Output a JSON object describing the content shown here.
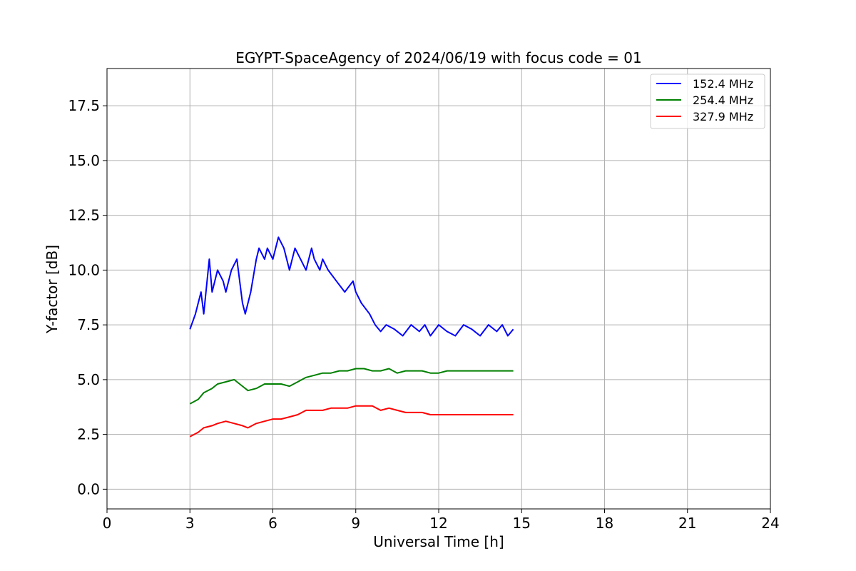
{
  "chart_data": {
    "type": "line",
    "title": "EGYPT-SpaceAgency of 2024/06/19 with focus code = 01",
    "xlabel": "Universal Time [h]",
    "ylabel": "Y-factor [dB]",
    "xlim": [
      0,
      24
    ],
    "ylim": [
      -0.9,
      19.2
    ],
    "xticks": [
      0,
      3,
      6,
      9,
      12,
      15,
      18,
      21,
      24
    ],
    "xtick_labels": [
      "0",
      "3",
      "6",
      "9",
      "12",
      "15",
      "18",
      "21",
      "24"
    ],
    "yticks": [
      0.0,
      2.5,
      5.0,
      7.5,
      10.0,
      12.5,
      15.0,
      17.5
    ],
    "ytick_labels": [
      "0.0",
      "2.5",
      "5.0",
      "7.5",
      "10.0",
      "12.5",
      "15.0",
      "17.5"
    ],
    "grid": true,
    "legend_position": "top-right",
    "series": [
      {
        "name": "152.4 MHz",
        "color": "#0000ff",
        "x": [
          3.0,
          3.2,
          3.4,
          3.5,
          3.7,
          3.8,
          4.0,
          4.2,
          4.3,
          4.5,
          4.7,
          4.9,
          5.0,
          5.2,
          5.4,
          5.5,
          5.7,
          5.8,
          6.0,
          6.2,
          6.4,
          6.6,
          6.8,
          7.0,
          7.2,
          7.4,
          7.5,
          7.7,
          7.8,
          8.0,
          8.3,
          8.6,
          8.9,
          9.0,
          9.2,
          9.5,
          9.7,
          9.9,
          10.1,
          10.4,
          10.7,
          11.0,
          11.3,
          11.5,
          11.7,
          12.0,
          12.3,
          12.6,
          12.9,
          13.2,
          13.5,
          13.8,
          14.1,
          14.3,
          14.5,
          14.7
        ],
        "y": [
          7.3,
          8.0,
          9.0,
          8.0,
          10.5,
          9.0,
          10.0,
          9.5,
          9.0,
          10.0,
          10.5,
          8.5,
          8.0,
          9.0,
          10.5,
          11.0,
          10.5,
          11.0,
          10.5,
          11.5,
          11.0,
          10.0,
          11.0,
          10.5,
          10.0,
          11.0,
          10.5,
          10.0,
          10.5,
          10.0,
          9.5,
          9.0,
          9.5,
          9.0,
          8.5,
          8.0,
          7.5,
          7.2,
          7.5,
          7.3,
          7.0,
          7.5,
          7.2,
          7.5,
          7.0,
          7.5,
          7.2,
          7.0,
          7.5,
          7.3,
          7.0,
          7.5,
          7.2,
          7.5,
          7.0,
          7.3
        ]
      },
      {
        "name": "254.4 MHz",
        "color": "#008000",
        "x": [
          3.0,
          3.3,
          3.5,
          3.8,
          4.0,
          4.3,
          4.6,
          4.9,
          5.1,
          5.4,
          5.7,
          6.0,
          6.3,
          6.6,
          6.9,
          7.2,
          7.5,
          7.8,
          8.1,
          8.4,
          8.7,
          9.0,
          9.3,
          9.6,
          9.9,
          10.2,
          10.5,
          10.8,
          11.1,
          11.4,
          11.7,
          12.0,
          12.3,
          12.6,
          12.9,
          13.2,
          13.5,
          13.8,
          14.1,
          14.4,
          14.7
        ],
        "y": [
          3.9,
          4.1,
          4.4,
          4.6,
          4.8,
          4.9,
          5.0,
          4.7,
          4.5,
          4.6,
          4.8,
          4.8,
          4.8,
          4.7,
          4.9,
          5.1,
          5.2,
          5.3,
          5.3,
          5.4,
          5.4,
          5.5,
          5.5,
          5.4,
          5.4,
          5.5,
          5.3,
          5.4,
          5.4,
          5.4,
          5.3,
          5.3,
          5.4,
          5.4,
          5.4,
          5.4,
          5.4,
          5.4,
          5.4,
          5.4,
          5.4
        ]
      },
      {
        "name": "327.9 MHz",
        "color": "#ff0000",
        "x": [
          3.0,
          3.3,
          3.5,
          3.8,
          4.0,
          4.3,
          4.6,
          4.9,
          5.1,
          5.4,
          5.7,
          6.0,
          6.3,
          6.6,
          6.9,
          7.2,
          7.5,
          7.8,
          8.1,
          8.4,
          8.7,
          9.0,
          9.3,
          9.6,
          9.9,
          10.2,
          10.5,
          10.8,
          11.1,
          11.4,
          11.7,
          12.0,
          12.3,
          12.6,
          12.9,
          13.2,
          13.5,
          13.8,
          14.1,
          14.4,
          14.7
        ],
        "y": [
          2.4,
          2.6,
          2.8,
          2.9,
          3.0,
          3.1,
          3.0,
          2.9,
          2.8,
          3.0,
          3.1,
          3.2,
          3.2,
          3.3,
          3.4,
          3.6,
          3.6,
          3.6,
          3.7,
          3.7,
          3.7,
          3.8,
          3.8,
          3.8,
          3.6,
          3.7,
          3.6,
          3.5,
          3.5,
          3.5,
          3.4,
          3.4,
          3.4,
          3.4,
          3.4,
          3.4,
          3.4,
          3.4,
          3.4,
          3.4,
          3.4
        ]
      }
    ]
  }
}
